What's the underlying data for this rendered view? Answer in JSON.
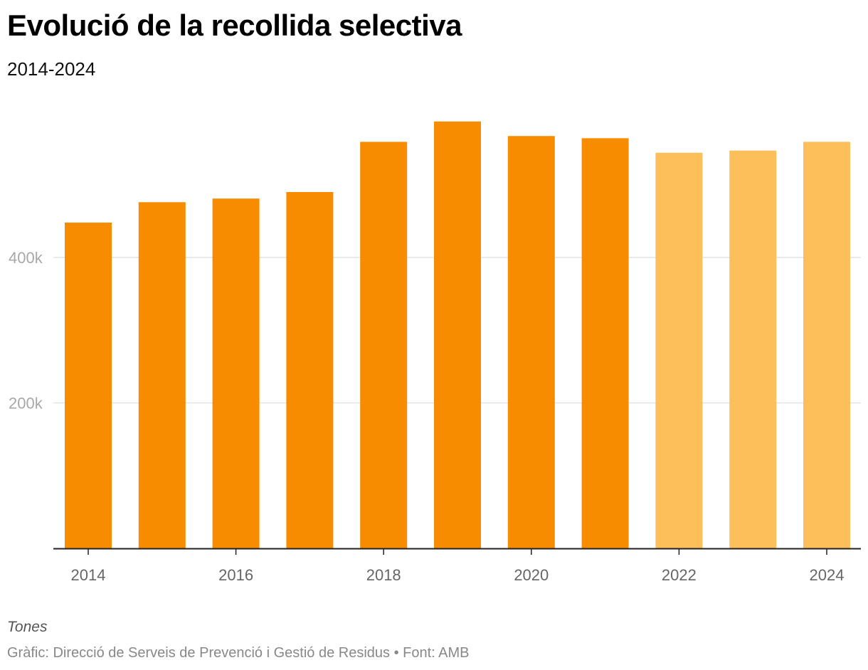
{
  "chart_data": {
    "type": "bar",
    "title": "Evolució de la recollida selectiva",
    "subtitle": "2014-2024",
    "categories": [
      "2014",
      "2015",
      "2016",
      "2017",
      "2018",
      "2019",
      "2020",
      "2021",
      "2022",
      "2023",
      "2024"
    ],
    "values": [
      448000,
      476000,
      481000,
      490000,
      559000,
      587000,
      567000,
      564000,
      544000,
      547000,
      559000
    ],
    "colors": [
      "#f78c00",
      "#f78c00",
      "#f78c00",
      "#f78c00",
      "#f78c00",
      "#f78c00",
      "#f78c00",
      "#f78c00",
      "#fdbf59",
      "#fdbf59",
      "#fdbf59"
    ],
    "x_tick_labels": [
      "2014",
      "2016",
      "2018",
      "2020",
      "2022",
      "2024"
    ],
    "y_ticks": [
      {
        "value": 200000,
        "label": "200k"
      },
      {
        "value": 400000,
        "label": "400k"
      }
    ],
    "ylim": [
      0,
      620000
    ],
    "xlabel": "",
    "ylabel": "Tones",
    "grid": true
  },
  "header": {
    "title": "Evolució de la recollida selectiva",
    "subtitle": "2014-2024"
  },
  "notes": {
    "unit": "Tones",
    "source": "Gràfic: Direcció de Serveis de Prevenció i Gestió de Residus • Font: AMB"
  }
}
